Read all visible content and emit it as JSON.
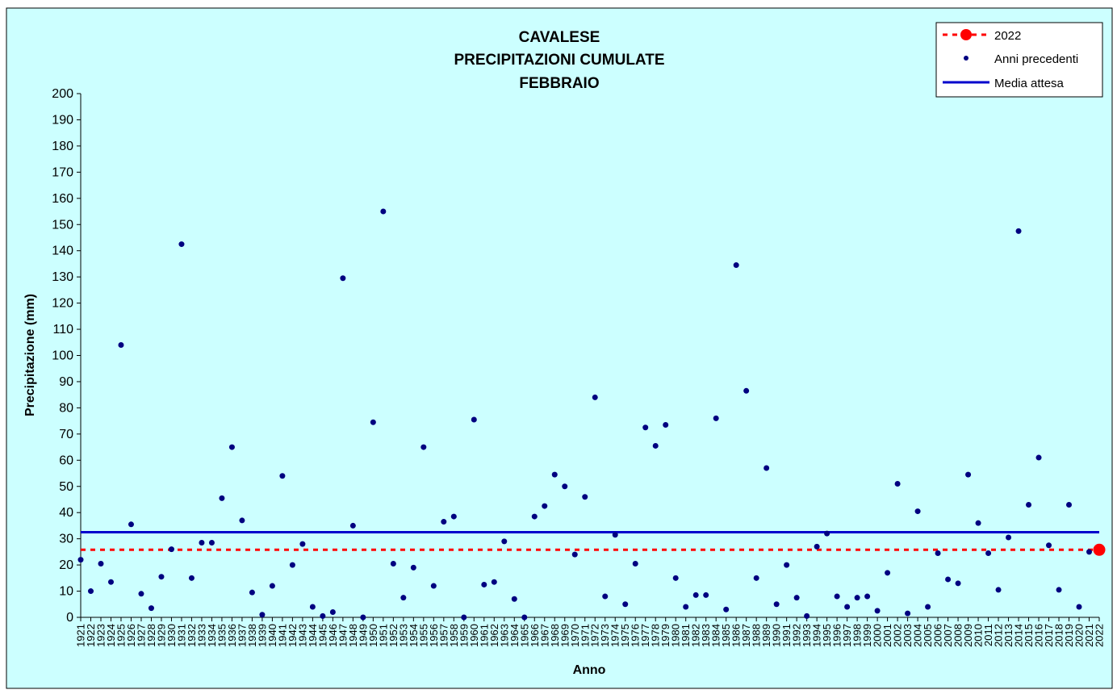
{
  "colors": {
    "background": "#ccffff",
    "previous_years": "#000080",
    "current_year": "#ff0000",
    "expected_mean": "#0000cc"
  },
  "chart_data": {
    "type": "scatter",
    "title_lines": [
      "CAVALESE",
      "PRECIPITAZIONI CUMULATE",
      "FEBBRAIO"
    ],
    "xlabel": "Anno",
    "ylabel": "Precipitazione (mm)",
    "ylim": [
      0,
      200
    ],
    "y_ticks": [
      0,
      10,
      20,
      30,
      40,
      50,
      60,
      70,
      80,
      90,
      100,
      110,
      120,
      130,
      140,
      150,
      160,
      170,
      180,
      190,
      200
    ],
    "grid": false,
    "legend_position": "top-right",
    "legend": [
      {
        "label": "2022",
        "marker": "red-dot",
        "line": "red-dashed"
      },
      {
        "label": "Anni precedenti",
        "marker": "navy-dot"
      },
      {
        "label": "Media attesa",
        "line": "blue-solid"
      }
    ],
    "categories": [
      1921,
      1922,
      1923,
      1924,
      1925,
      1926,
      1927,
      1928,
      1929,
      1930,
      1931,
      1932,
      1933,
      1934,
      1935,
      1936,
      1937,
      1938,
      1939,
      1940,
      1941,
      1942,
      1943,
      1944,
      1945,
      1946,
      1947,
      1948,
      1949,
      1950,
      1951,
      1952,
      1953,
      1954,
      1955,
      1956,
      1957,
      1958,
      1959,
      1960,
      1961,
      1962,
      1963,
      1964,
      1965,
      1966,
      1967,
      1968,
      1969,
      1970,
      1971,
      1972,
      1973,
      1974,
      1975,
      1976,
      1977,
      1978,
      1979,
      1980,
      1981,
      1982,
      1983,
      1984,
      1985,
      1986,
      1987,
      1988,
      1989,
      1990,
      1991,
      1992,
      1993,
      1994,
      1995,
      1996,
      1997,
      1998,
      1999,
      2000,
      2001,
      2002,
      2003,
      2004,
      2005,
      2006,
      2007,
      2008,
      2009,
      2010,
      2011,
      2012,
      2013,
      2014,
      2015,
      2016,
      2017,
      2018,
      2019,
      2020,
      2021,
      2022
    ],
    "series": [
      {
        "name": "Anni precedenti",
        "years": [
          1921,
          1922,
          1923,
          1924,
          1925,
          1926,
          1927,
          1928,
          1929,
          1930,
          1931,
          1932,
          1933,
          1934,
          1935,
          1936,
          1937,
          1938,
          1939,
          1940,
          1941,
          1942,
          1943,
          1944,
          1945,
          1946,
          1947,
          1948,
          1949,
          1950,
          1951,
          1952,
          1953,
          1954,
          1955,
          1956,
          1957,
          1958,
          1959,
          1960,
          1961,
          1962,
          1963,
          1964,
          1965,
          1966,
          1967,
          1968,
          1969,
          1970,
          1971,
          1972,
          1973,
          1974,
          1975,
          1976,
          1977,
          1978,
          1979,
          1980,
          1981,
          1982,
          1983,
          1984,
          1985,
          1986,
          1987,
          1988,
          1989,
          1990,
          1991,
          1992,
          1993,
          1994,
          1995,
          1996,
          1997,
          1998,
          1999,
          2000,
          2001,
          2002,
          2003,
          2004,
          2005,
          2006,
          2007,
          2008,
          2009,
          2010,
          2011,
          2012,
          2013,
          2014,
          2015,
          2016,
          2017,
          2018,
          2019,
          2020,
          2021
        ],
        "values": [
          22,
          10,
          20.5,
          13.5,
          104,
          35.5,
          9,
          3.5,
          15.5,
          26,
          142.5,
          15,
          28.5,
          28.5,
          45.5,
          65,
          37,
          9.5,
          1,
          12,
          54,
          20,
          28,
          4,
          0.5,
          2,
          129.5,
          35,
          0,
          74.5,
          155,
          20.5,
          7.5,
          19,
          65,
          12,
          36.5,
          38.5,
          0,
          75.5,
          12.5,
          13.5,
          29,
          7,
          0,
          38.5,
          42.5,
          54.5,
          50,
          24,
          46,
          84,
          8,
          31.5,
          5,
          20.5,
          72.5,
          65.5,
          73.5,
          15,
          4,
          8.5,
          8.5,
          76,
          3,
          134.5,
          86.5,
          15,
          57,
          5,
          20,
          7.5,
          0.5,
          27,
          32,
          8,
          4,
          7.5,
          8,
          2.5,
          17,
          51,
          1.5,
          40.5,
          4,
          24.5,
          14.5,
          13,
          54.5,
          36,
          24.5,
          10.5,
          30.5,
          147.5,
          43,
          61,
          27.5,
          10.5,
          43,
          4,
          25
        ]
      },
      {
        "name": "2022",
        "years": [
          2022
        ],
        "values": [
          25.8
        ]
      },
      {
        "name": "Media attesa",
        "constant": 32.5
      }
    ]
  }
}
